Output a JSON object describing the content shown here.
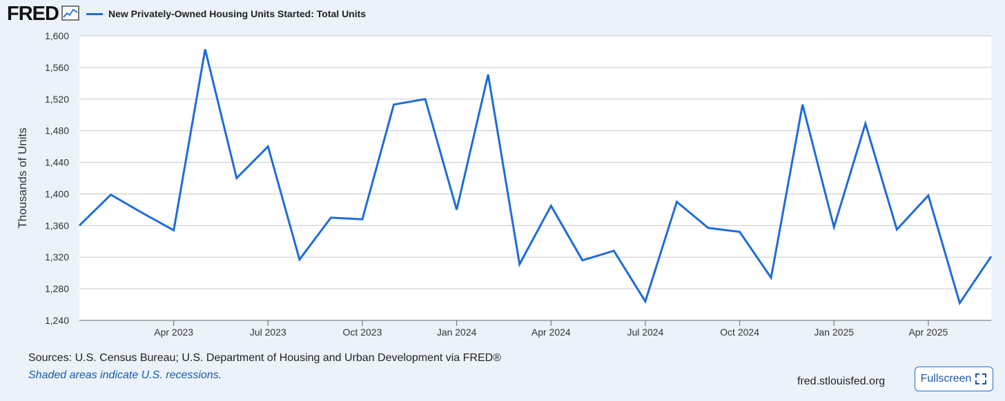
{
  "header": {
    "logo_text": "FRED",
    "logo_icon": "chart-line-icon",
    "legend_label": "New Privately-Owned Housing Units Started: Total Units"
  },
  "colors": {
    "series": "#1c6cd8",
    "background": "#ebf2f9",
    "plot_bg": "#ffffff",
    "grid": "#c8c8c8"
  },
  "chart_data": {
    "type": "line",
    "title": "New Privately-Owned Housing Units Started: Total Units",
    "xlabel": "",
    "ylabel": "Thousands of Units",
    "ylim": [
      1240,
      1600
    ],
    "yticks": [
      "1,240",
      "1,280",
      "1,320",
      "1,360",
      "1,400",
      "1,440",
      "1,480",
      "1,520",
      "1,560",
      "1,600"
    ],
    "ytick_values": [
      1240,
      1280,
      1320,
      1360,
      1400,
      1440,
      1480,
      1520,
      1560,
      1600
    ],
    "xticks": [
      "Apr 2023",
      "Jul 2023",
      "Oct 2023",
      "Jan 2024",
      "Apr 2024",
      "Jul 2024",
      "Oct 2024",
      "Jan 2025",
      "Apr 2025"
    ],
    "xtick_index": [
      3,
      6,
      9,
      12,
      15,
      18,
      21,
      24,
      27
    ],
    "x": [
      "Jan 2023",
      "Feb 2023",
      "Mar 2023",
      "Apr 2023",
      "May 2023",
      "Jun 2023",
      "Jul 2023",
      "Aug 2023",
      "Sep 2023",
      "Oct 2023",
      "Nov 2023",
      "Dec 2023",
      "Jan 2024",
      "Feb 2024",
      "Mar 2024",
      "Apr 2024",
      "May 2024",
      "Jun 2024",
      "Jul 2024",
      "Aug 2024",
      "Sep 2024",
      "Oct 2024",
      "Nov 2024",
      "Dec 2024",
      "Jan 2025",
      "Feb 2025",
      "Mar 2025",
      "Apr 2025",
      "May 2025",
      "Jun 2025"
    ],
    "series": [
      {
        "name": "New Privately-Owned Housing Units Started: Total Units",
        "values": [
          1360,
          1399,
          1376,
          1354,
          1583,
          1420,
          1460,
          1317,
          1370,
          1368,
          1513,
          1520,
          1380,
          1551,
          1311,
          1385,
          1316,
          1328,
          1264,
          1390,
          1357,
          1352,
          1294,
          1513,
          1358,
          1489,
          1355,
          1398,
          1262,
          1321
        ]
      }
    ],
    "grid": true
  },
  "footer": {
    "sources": "Sources: U.S. Census Bureau; U.S. Department of Housing and Urban Development via FRED®",
    "recession_note": "Shaded areas indicate U.S. recessions.",
    "url": "fred.stlouisfed.org",
    "fullscreen_label": "Fullscreen"
  }
}
